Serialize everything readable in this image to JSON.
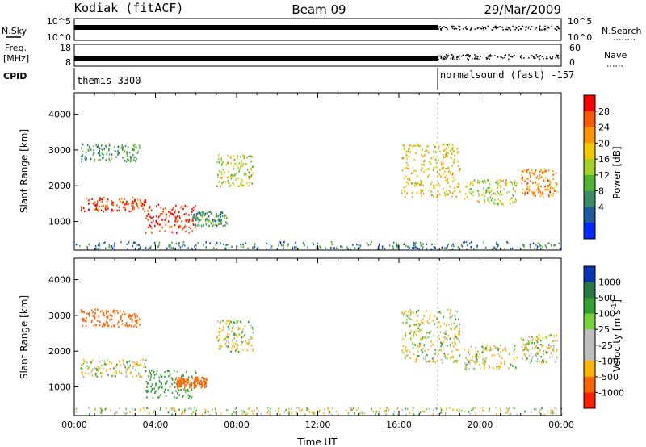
{
  "header": {
    "station": "Kodiak (fitACF)",
    "beam": "Beam 09",
    "date": "29/Mar/2009"
  },
  "top_strips": {
    "nsky_label": "N.Sky",
    "nsky_ticks": [
      "10^5",
      "10^0"
    ],
    "nsearch_label": "N.Search",
    "nsearch_ticks": [
      "10^5",
      "10^0"
    ],
    "freq_label": "Freq.",
    "freq_unit": "[MHz]",
    "freq_ticks": [
      "18",
      "8"
    ],
    "nave_label": "Nave",
    "nave_ticks": [
      "60",
      "0"
    ],
    "cpid_label": "CPID",
    "cpid_segments": [
      "themis 3300",
      "normalsound (fast) -157"
    ]
  },
  "colorbars": {
    "power": {
      "label": "Power [dB]",
      "ticks": [
        "28",
        "24",
        "20",
        "16",
        "12",
        "8",
        "4"
      ],
      "colors": [
        "#ff0000",
        "#ff5a00",
        "#ff9600",
        "#f0c800",
        "#a0d228",
        "#50b432",
        "#3c8c64",
        "#1e5aa0",
        "#0028ff"
      ]
    },
    "velocity": {
      "label": "Velocity [m s",
      "label_sup": "-1",
      "label_end": "]",
      "ticks": [
        "1000",
        "500",
        "100",
        "25",
        "-25",
        "-100",
        "-500",
        "-1000"
      ],
      "colors": [
        "#0a32b4",
        "#287846",
        "#32a032",
        "#78d23c",
        "#bebebe",
        "#bebebe",
        "#ffb400",
        "#ff6400",
        "#ff1e00"
      ]
    }
  },
  "chart_data": [
    {
      "type": "heatmap",
      "title": "",
      "ylabel": "Slant Range [km]",
      "xlabel": "",
      "y_ticks": [
        "4000",
        "3000",
        "2000",
        "1000"
      ],
      "ylim": [
        200,
        4600
      ],
      "x_range_hours": [
        0,
        24
      ],
      "colorbar": "Power [dB]",
      "scatter_regions": [
        {
          "t0": 0.3,
          "t1": 3.5,
          "r0": 1300,
          "r1": 1700,
          "level": 26
        },
        {
          "t0": 0.3,
          "t1": 3.2,
          "r0": 2700,
          "r1": 3200,
          "level": 10
        },
        {
          "t0": 3.5,
          "t1": 6.0,
          "r0": 700,
          "r1": 1500,
          "level": 28
        },
        {
          "t0": 5.8,
          "t1": 7.5,
          "r0": 900,
          "r1": 1300,
          "level": 10
        },
        {
          "t0": 7.0,
          "t1": 8.8,
          "r0": 2000,
          "r1": 2900,
          "level": 16
        },
        {
          "t0": 16.1,
          "t1": 19.0,
          "r0": 1700,
          "r1": 3200,
          "level": 18
        },
        {
          "t0": 19.2,
          "t1": 21.8,
          "r0": 1500,
          "r1": 2200,
          "level": 16
        },
        {
          "t0": 22.0,
          "t1": 23.8,
          "r0": 1700,
          "r1": 2500,
          "level": 22
        },
        {
          "t0": 0.0,
          "t1": 24.0,
          "r0": 250,
          "r1": 450,
          "level": 8
        }
      ]
    },
    {
      "type": "heatmap",
      "title": "",
      "ylabel": "Slant Range [km]",
      "xlabel": "Time UT",
      "y_ticks": [
        "4000",
        "3000",
        "2000",
        "1000"
      ],
      "ylim": [
        200,
        4600
      ],
      "x_ticks": [
        "00:00",
        "04:00",
        "08:00",
        "12:00",
        "16:00",
        "20:00",
        "00:00"
      ],
      "x_range_hours": [
        0,
        24
      ],
      "colorbar": "Velocity [m s-1]",
      "scatter_regions": [
        {
          "t0": 0.3,
          "t1": 3.5,
          "r0": 1300,
          "r1": 1800,
          "level": 0
        },
        {
          "t0": 0.3,
          "t1": 3.2,
          "r0": 2700,
          "r1": 3200,
          "level": -300
        },
        {
          "t0": 3.5,
          "t1": 6.0,
          "r0": 700,
          "r1": 1500,
          "level": 150
        },
        {
          "t0": 5.0,
          "t1": 6.5,
          "r0": 1000,
          "r1": 1300,
          "level": -400
        },
        {
          "t0": 7.0,
          "t1": 8.8,
          "r0": 2000,
          "r1": 2900,
          "level": 0
        },
        {
          "t0": 16.1,
          "t1": 19.0,
          "r0": 1700,
          "r1": 3200,
          "level": 0
        },
        {
          "t0": 19.2,
          "t1": 21.8,
          "r0": 1500,
          "r1": 2200,
          "level": 0
        },
        {
          "t0": 22.0,
          "t1": 23.8,
          "r0": 1700,
          "r1": 2500,
          "level": 0
        },
        {
          "t0": 0.0,
          "t1": 24.0,
          "r0": 250,
          "r1": 450,
          "level": 0
        }
      ]
    }
  ]
}
